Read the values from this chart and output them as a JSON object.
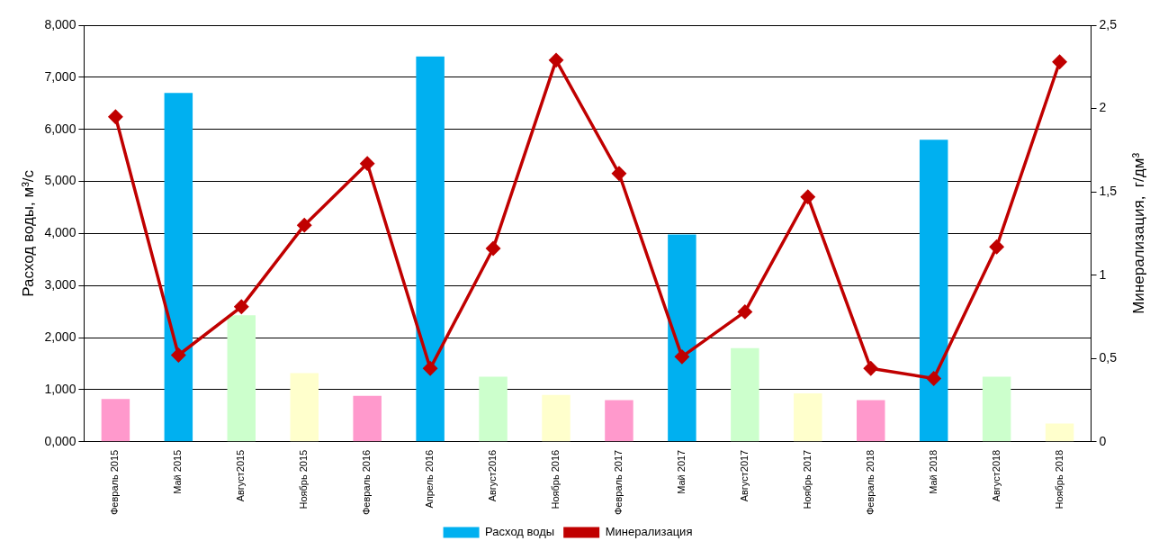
{
  "chart_data": {
    "type": "bar",
    "xlabel": null,
    "ylabel": "Расход воды, м³/с",
    "y2label": "Минерализация,  г/дм³",
    "categories": [
      "Февраль 2015",
      "Май 2015",
      "Август2015",
      "Ноябрь 2015",
      "Февраль 2016",
      "Апрель 2016",
      "Август2016",
      "Ноябрь 2016",
      "Февраль 2017",
      "Май 2017",
      "Август2017",
      "Ноябрь 2017",
      "Февраль 2018",
      "Май 2018",
      "Август2018",
      "Ноябрь 2018"
    ],
    "series": [
      {
        "name": "Расход воды",
        "color": "#00b0f0",
        "colors": [
          "#ff99cc",
          "#00b0f0",
          "#ccffcc",
          "#ffffcc",
          "#ff99cc",
          "#00b0f0",
          "#ccffcc",
          "#ffffcc",
          "#ff99cc",
          "#00b0f0",
          "#ccffcc",
          "#ffffcc",
          "#ff99cc",
          "#00b0f0",
          "#ccffcc",
          "#ffffcc"
        ],
        "values": [
          0.82,
          6.7,
          2.43,
          1.32,
          0.88,
          7.4,
          1.25,
          0.9,
          0.8,
          3.98,
          1.8,
          0.93,
          0.8,
          5.8,
          1.25,
          0.35
        ]
      },
      {
        "name": "Минерализация",
        "type": "line",
        "axis": "y2",
        "color": "#c00000",
        "values": [
          1.95,
          0.52,
          0.81,
          1.3,
          1.67,
          0.44,
          1.16,
          2.29,
          1.61,
          0.51,
          0.78,
          1.47,
          0.44,
          0.38,
          1.17,
          2.28
        ]
      }
    ],
    "ylim": [
      0,
      8
    ],
    "yticks": [
      {
        "value": 0,
        "label": "0,000"
      },
      {
        "value": 1,
        "label": "1,000"
      },
      {
        "value": 2,
        "label": "2,000"
      },
      {
        "value": 3,
        "label": "3,000"
      },
      {
        "value": 4,
        "label": "4,000"
      },
      {
        "value": 5,
        "label": "5,000"
      },
      {
        "value": 6,
        "label": "6,000"
      },
      {
        "value": 7,
        "label": "7,000"
      },
      {
        "value": 8,
        "label": "8,000"
      }
    ],
    "y2lim": [
      0,
      2.5
    ],
    "y2ticks": [
      0,
      {
        "value": 0.5,
        "label": "0,5"
      },
      1,
      {
        "value": 1.5,
        "label": "1,5"
      },
      2,
      {
        "value": 2.5,
        "label": "2,5"
      }
    ],
    "grid": "y",
    "legend": "bottom",
    "marker": "diamond",
    "line_style": "solid"
  }
}
